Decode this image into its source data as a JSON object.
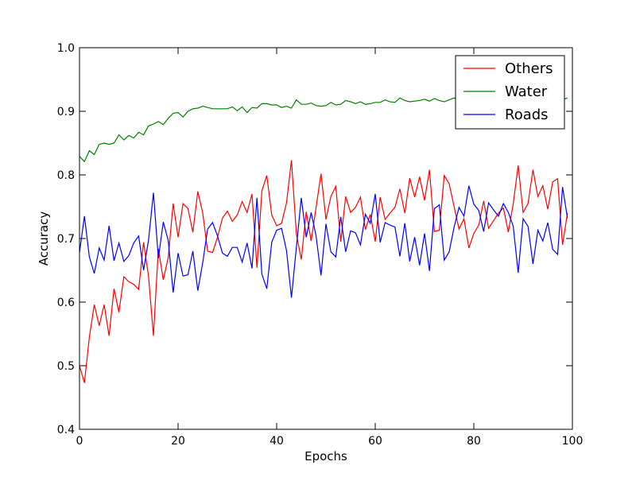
{
  "chart_data": {
    "type": "line",
    "title": "",
    "xlabel": "Epochs",
    "ylabel": "Accuracy",
    "xlim": [
      0,
      100
    ],
    "ylim": [
      0.4,
      1.0
    ],
    "xticks": [
      0,
      20,
      40,
      60,
      80,
      100
    ],
    "yticks": [
      0.4,
      0.5,
      0.6,
      0.7,
      0.8,
      0.9,
      1.0
    ],
    "xtick_labels": [
      "0",
      "20",
      "40",
      "60",
      "80",
      "100"
    ],
    "ytick_labels": [
      "0.4",
      "0.5",
      "0.6",
      "0.7",
      "0.8",
      "0.9",
      "1.0"
    ],
    "grid": false,
    "legend_position": "top-right",
    "series": [
      {
        "name": "Others",
        "color": "#ff0000",
        "x": [
          0,
          1,
          2,
          3,
          4,
          5,
          6,
          7,
          8,
          9,
          10,
          11,
          12,
          13,
          14,
          15,
          16,
          17,
          18,
          19,
          20,
          21,
          22,
          23,
          24,
          25,
          26,
          27,
          28,
          29,
          30,
          31,
          32,
          33,
          34,
          35,
          36,
          37,
          38,
          39,
          40,
          41,
          42,
          43,
          44,
          45,
          46,
          47,
          48,
          49,
          50,
          51,
          52,
          53,
          54,
          55,
          56,
          57,
          58,
          59,
          60,
          61,
          62,
          63,
          64,
          65,
          66,
          67,
          68,
          69,
          70,
          71,
          72,
          73,
          74,
          75,
          76,
          77,
          78,
          79,
          80,
          81,
          82,
          83,
          84,
          85,
          86,
          87,
          88,
          89,
          90,
          91,
          92,
          93,
          94,
          95,
          96,
          97,
          98,
          99
        ],
        "values": [
          0.5,
          0.473,
          0.545,
          0.596,
          0.563,
          0.596,
          0.547,
          0.621,
          0.584,
          0.64,
          0.632,
          0.628,
          0.62,
          0.694,
          0.641,
          0.547,
          0.684,
          0.635,
          0.67,
          0.755,
          0.702,
          0.755,
          0.747,
          0.71,
          0.774,
          0.74,
          0.68,
          0.678,
          0.702,
          0.732,
          0.743,
          0.727,
          0.737,
          0.758,
          0.741,
          0.77,
          0.654,
          0.775,
          0.799,
          0.737,
          0.72,
          0.724,
          0.756,
          0.823,
          0.707,
          0.667,
          0.742,
          0.696,
          0.749,
          0.802,
          0.73,
          0.766,
          0.782,
          0.695,
          0.766,
          0.741,
          0.749,
          0.765,
          0.714,
          0.738,
          0.695,
          0.765,
          0.73,
          0.74,
          0.749,
          0.778,
          0.74,
          0.795,
          0.765,
          0.797,
          0.76,
          0.808,
          0.711,
          0.713,
          0.799,
          0.786,
          0.75,
          0.715,
          0.731,
          0.685,
          0.708,
          0.721,
          0.759,
          0.716,
          0.728,
          0.74,
          0.748,
          0.71,
          0.755,
          0.815,
          0.741,
          0.755,
          0.808,
          0.766,
          0.783,
          0.746,
          0.789,
          0.794,
          0.69,
          0.74
        ]
      },
      {
        "name": "Water",
        "color": "#008000",
        "x": [
          0,
          1,
          2,
          3,
          4,
          5,
          6,
          7,
          8,
          9,
          10,
          11,
          12,
          13,
          14,
          15,
          16,
          17,
          18,
          19,
          20,
          21,
          22,
          23,
          24,
          25,
          26,
          27,
          28,
          29,
          30,
          31,
          32,
          33,
          34,
          35,
          36,
          37,
          38,
          39,
          40,
          41,
          42,
          43,
          44,
          45,
          46,
          47,
          48,
          49,
          50,
          51,
          52,
          53,
          54,
          55,
          56,
          57,
          58,
          59,
          60,
          61,
          62,
          63,
          64,
          65,
          66,
          67,
          68,
          69,
          70,
          71,
          72,
          73,
          74,
          75,
          76,
          77,
          78,
          79,
          80,
          81,
          82,
          83,
          84,
          85,
          86,
          87,
          88,
          89,
          90,
          91,
          92,
          93,
          94,
          95,
          96,
          97,
          98,
          99
        ],
        "values": [
          0.829,
          0.821,
          0.838,
          0.832,
          0.848,
          0.85,
          0.848,
          0.85,
          0.863,
          0.855,
          0.862,
          0.858,
          0.867,
          0.863,
          0.877,
          0.88,
          0.884,
          0.879,
          0.889,
          0.897,
          0.898,
          0.891,
          0.9,
          0.904,
          0.905,
          0.908,
          0.906,
          0.904,
          0.904,
          0.904,
          0.904,
          0.907,
          0.901,
          0.907,
          0.898,
          0.906,
          0.905,
          0.912,
          0.912,
          0.91,
          0.91,
          0.906,
          0.908,
          0.905,
          0.918,
          0.911,
          0.911,
          0.913,
          0.909,
          0.908,
          0.909,
          0.914,
          0.91,
          0.911,
          0.917,
          0.915,
          0.912,
          0.915,
          0.911,
          0.912,
          0.914,
          0.914,
          0.918,
          0.915,
          0.914,
          0.921,
          0.917,
          0.915,
          0.916,
          0.917,
          0.919,
          0.916,
          0.92,
          0.917,
          0.915,
          0.918,
          0.921,
          0.918,
          0.918,
          0.92,
          0.918,
          0.92,
          0.92,
          0.921,
          0.918,
          0.92,
          0.92,
          0.921,
          0.919,
          0.921,
          0.92,
          0.919,
          0.921,
          0.92,
          0.92,
          0.922,
          0.92,
          0.921,
          0.918,
          0.921
        ]
      },
      {
        "name": "Roads",
        "color": "#0000ff",
        "x": [
          0,
          1,
          2,
          3,
          4,
          5,
          6,
          7,
          8,
          9,
          10,
          11,
          12,
          13,
          14,
          15,
          16,
          17,
          18,
          19,
          20,
          21,
          22,
          23,
          24,
          25,
          26,
          27,
          28,
          29,
          30,
          31,
          32,
          33,
          34,
          35,
          36,
          37,
          38,
          39,
          40,
          41,
          42,
          43,
          44,
          45,
          46,
          47,
          48,
          49,
          50,
          51,
          52,
          53,
          54,
          55,
          56,
          57,
          58,
          59,
          60,
          61,
          62,
          63,
          64,
          65,
          66,
          67,
          68,
          69,
          70,
          71,
          72,
          73,
          74,
          75,
          76,
          77,
          78,
          79,
          80,
          81,
          82,
          83,
          84,
          85,
          86,
          87,
          88,
          89,
          90,
          91,
          92,
          93,
          94,
          95,
          96,
          97,
          98,
          99
        ],
        "values": [
          0.678,
          0.735,
          0.671,
          0.645,
          0.685,
          0.666,
          0.72,
          0.665,
          0.693,
          0.664,
          0.673,
          0.693,
          0.704,
          0.65,
          0.697,
          0.772,
          0.669,
          0.726,
          0.697,
          0.615,
          0.677,
          0.641,
          0.643,
          0.68,
          0.618,
          0.662,
          0.715,
          0.725,
          0.704,
          0.677,
          0.672,
          0.686,
          0.686,
          0.663,
          0.693,
          0.653,
          0.764,
          0.644,
          0.621,
          0.694,
          0.713,
          0.716,
          0.681,
          0.607,
          0.686,
          0.764,
          0.702,
          0.741,
          0.704,
          0.642,
          0.723,
          0.679,
          0.671,
          0.734,
          0.679,
          0.712,
          0.709,
          0.69,
          0.738,
          0.724,
          0.77,
          0.694,
          0.725,
          0.721,
          0.718,
          0.672,
          0.724,
          0.664,
          0.702,
          0.658,
          0.708,
          0.649,
          0.747,
          0.753,
          0.666,
          0.679,
          0.718,
          0.749,
          0.735,
          0.783,
          0.754,
          0.744,
          0.711,
          0.756,
          0.745,
          0.735,
          0.755,
          0.741,
          0.719,
          0.646,
          0.731,
          0.719,
          0.66,
          0.713,
          0.696,
          0.725,
          0.683,
          0.675,
          0.781,
          0.732
        ]
      }
    ]
  }
}
